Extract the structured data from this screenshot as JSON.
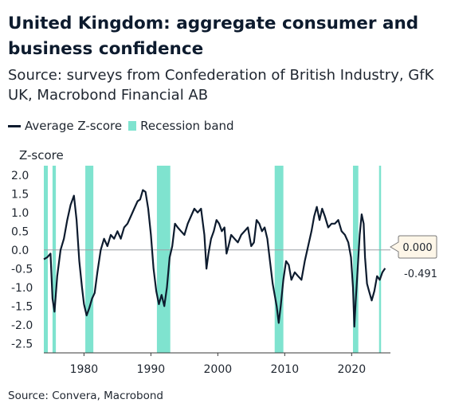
{
  "chart_data": {
    "type": "line",
    "title": "United Kingdom: aggregate consumer and business confidence",
    "subtitle": "Source: surveys from Confederation of British Industry, GfK UK, Macrobond Financial AB",
    "ylabel": "Z-score",
    "ylim": [
      -2.75,
      2.25
    ],
    "xlim": [
      1974.0,
      2025.8
    ],
    "x_ticks": [
      1980,
      1990,
      2000,
      2010,
      2020
    ],
    "y_ticks": [
      2.0,
      1.5,
      1.0,
      0.5,
      0.0,
      -0.5,
      -1.0,
      -1.5,
      -2.0,
      -2.5
    ],
    "legend": {
      "placement": "top-left",
      "line_label": "Average Z-score",
      "band_label": "Recession band"
    },
    "recessions": [
      [
        1974.0,
        1974.6
      ],
      [
        1975.3,
        1975.8
      ],
      [
        1980.2,
        1981.4
      ],
      [
        1990.9,
        1992.9
      ],
      [
        2008.5,
        2009.8
      ],
      [
        2020.2,
        2021.0
      ],
      [
        2024.1,
        2024.4
      ]
    ],
    "reference_line": {
      "value": 0.0,
      "label": "0.000"
    },
    "last_value_label": "-0.491",
    "colors": {
      "line": "#0d1b2e",
      "band": "#7fe3cf",
      "last_value": "#2fb8a0",
      "zero_line": "#9aa0a6"
    },
    "series": [
      {
        "name": "Average Z-score",
        "x": [
          1974.0,
          1974.5,
          1975.0,
          1975.3,
          1975.6,
          1976.0,
          1976.5,
          1977.0,
          1977.5,
          1978.0,
          1978.5,
          1978.9,
          1979.3,
          1979.7,
          1980.0,
          1980.4,
          1980.8,
          1981.2,
          1981.6,
          1982.0,
          1982.5,
          1983.0,
          1983.5,
          1984.0,
          1984.5,
          1985.0,
          1985.5,
          1986.0,
          1986.5,
          1987.0,
          1987.5,
          1988.0,
          1988.4,
          1988.8,
          1989.2,
          1989.6,
          1990.0,
          1990.4,
          1990.8,
          1991.2,
          1991.6,
          1992.0,
          1992.4,
          1992.8,
          1993.2,
          1993.6,
          1994.0,
          1994.5,
          1995.0,
          1995.5,
          1996.0,
          1996.5,
          1997.0,
          1997.5,
          1998.0,
          1998.3,
          1998.6,
          1999.0,
          1999.4,
          1999.8,
          2000.2,
          2000.6,
          2001.0,
          2001.3,
          2001.6,
          2002.0,
          2002.5,
          2003.0,
          2003.5,
          2004.0,
          2004.5,
          2005.0,
          2005.4,
          2005.8,
          2006.2,
          2006.6,
          2007.0,
          2007.4,
          2007.8,
          2008.2,
          2008.5,
          2008.8,
          2009.1,
          2009.4,
          2009.8,
          2010.2,
          2010.6,
          2011.0,
          2011.5,
          2012.0,
          2012.5,
          2013.0,
          2013.5,
          2014.0,
          2014.4,
          2014.8,
          2015.2,
          2015.6,
          2016.0,
          2016.5,
          2017.0,
          2017.5,
          2018.0,
          2018.5,
          2019.0,
          2019.5,
          2019.9,
          2020.2,
          2020.4,
          2020.6,
          2020.9,
          2021.2,
          2021.5,
          2021.8,
          2022.0,
          2022.3,
          2022.6,
          2023.0,
          2023.4,
          2023.8,
          2024.2,
          2024.6,
          2025.0
        ],
        "values": [
          -0.25,
          -0.2,
          -0.1,
          -1.3,
          -1.65,
          -0.7,
          0.0,
          0.3,
          0.8,
          1.2,
          1.45,
          0.8,
          -0.3,
          -1.0,
          -1.45,
          -1.75,
          -1.55,
          -1.3,
          -1.15,
          -0.6,
          0.0,
          0.3,
          0.1,
          0.4,
          0.3,
          0.5,
          0.3,
          0.6,
          0.7,
          0.9,
          1.1,
          1.3,
          1.35,
          1.6,
          1.55,
          1.1,
          0.4,
          -0.5,
          -1.1,
          -1.45,
          -1.2,
          -1.5,
          -1.0,
          -0.2,
          0.1,
          0.7,
          0.6,
          0.5,
          0.4,
          0.7,
          0.9,
          1.1,
          1.0,
          1.1,
          0.4,
          -0.5,
          -0.1,
          0.3,
          0.5,
          0.8,
          0.7,
          0.5,
          0.6,
          -0.1,
          0.1,
          0.4,
          0.3,
          0.2,
          0.4,
          0.5,
          0.6,
          0.1,
          0.2,
          0.8,
          0.7,
          0.5,
          0.6,
          0.3,
          -0.3,
          -0.9,
          -1.2,
          -1.5,
          -1.95,
          -1.5,
          -0.8,
          -0.3,
          -0.4,
          -0.8,
          -0.6,
          -0.7,
          -0.8,
          -0.3,
          0.1,
          0.5,
          0.9,
          1.15,
          0.8,
          1.1,
          0.9,
          0.6,
          0.7,
          0.7,
          0.8,
          0.5,
          0.4,
          0.2,
          -0.2,
          -1.0,
          -2.05,
          -1.4,
          -0.5,
          0.4,
          0.95,
          0.7,
          -0.2,
          -0.9,
          -1.1,
          -1.35,
          -1.1,
          -0.7,
          -0.8,
          -0.6,
          -0.49
        ]
      }
    ]
  },
  "footer": "Source: Convera, Macrobond"
}
